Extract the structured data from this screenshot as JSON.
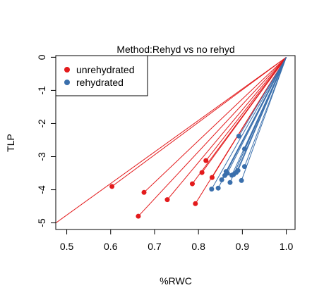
{
  "chart_data": {
    "type": "scatter",
    "title": "Method:Rehyd vs no rehyd",
    "xlabel": "%RWC",
    "ylabel": "TLP",
    "xlim": [
      0.475,
      1.02
    ],
    "ylim": [
      -5.2,
      0.05
    ],
    "x_ticks": [
      0.5,
      0.6,
      0.7,
      0.8,
      0.9,
      1.0
    ],
    "x_tick_labels": [
      "0.5",
      "0.6",
      "0.7",
      "0.8",
      "0.9",
      "1.0"
    ],
    "y_ticks": [
      0,
      -1,
      -2,
      -3,
      -4,
      -5
    ],
    "y_tick_labels": [
      "0",
      "-1",
      "-2",
      "-3",
      "-4",
      "-5"
    ],
    "grid": false,
    "legend_position": "top-left",
    "anchor_point": [
      1.0,
      0.0
    ],
    "series": [
      {
        "name": "unrehydrated",
        "color": "#e31a1c",
        "points": [
          [
            0.603,
            -3.9
          ],
          [
            0.676,
            -4.08
          ],
          [
            0.663,
            -4.8
          ],
          [
            0.729,
            -4.3
          ],
          [
            0.793,
            -4.42
          ],
          [
            0.786,
            -3.82
          ],
          [
            0.808,
            -3.48
          ],
          [
            0.817,
            -3.12
          ],
          [
            0.831,
            -3.63
          ]
        ],
        "extra_line_from": [
          0.47,
          -5.05
        ]
      },
      {
        "name": "rehydrated",
        "color": "#3a6fac",
        "points": [
          [
            0.892,
            -2.38
          ],
          [
            0.905,
            -2.77
          ],
          [
            0.905,
            -3.3
          ],
          [
            0.83,
            -3.98
          ],
          [
            0.845,
            -3.95
          ],
          [
            0.853,
            -3.7
          ],
          [
            0.86,
            -3.57
          ],
          [
            0.863,
            -3.45
          ],
          [
            0.866,
            -3.5
          ],
          [
            0.872,
            -3.78
          ],
          [
            0.876,
            -3.56
          ],
          [
            0.88,
            -3.54
          ],
          [
            0.886,
            -3.48
          ],
          [
            0.89,
            -3.42
          ],
          [
            0.898,
            -3.72
          ]
        ]
      }
    ]
  }
}
